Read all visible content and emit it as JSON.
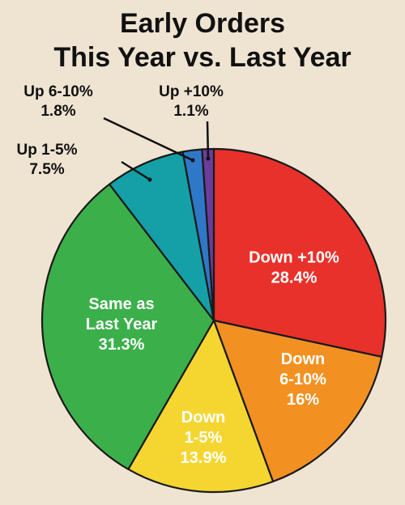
{
  "chart_data": {
    "type": "pie",
    "title_lines": [
      "Early Orders",
      "This Year vs. Last Year"
    ],
    "slices": [
      {
        "label_lines": [
          "Down +10%"
        ],
        "value": 28.4,
        "value_label": "28.4%",
        "color": "#e8312a",
        "label_placement": "inside"
      },
      {
        "label_lines": [
          "Down",
          "6-10%"
        ],
        "value": 16,
        "value_label": "16%",
        "color": "#f29122",
        "label_placement": "inside"
      },
      {
        "label_lines": [
          "Down",
          "1-5%"
        ],
        "value": 13.9,
        "value_label": "13.9%",
        "color": "#f5d631",
        "label_placement": "inside"
      },
      {
        "label_lines": [
          "Same as",
          "Last Year"
        ],
        "value": 31.3,
        "value_label": "31.3%",
        "color": "#3bb04a",
        "label_placement": "inside"
      },
      {
        "label_lines": [
          "Up 1-5%"
        ],
        "value": 7.5,
        "value_label": "7.5%",
        "color": "#14a0a6",
        "label_placement": "outside"
      },
      {
        "label_lines": [
          "Up 6-10%"
        ],
        "value": 1.8,
        "value_label": "1.8%",
        "color": "#2f78c8",
        "label_placement": "outside"
      },
      {
        "label_lines": [
          "Up +10%"
        ],
        "value": 1.1,
        "value_label": "1.1%",
        "color": "#6a3d9a",
        "label_placement": "outside"
      }
    ],
    "start": "12 o'clock",
    "direction": "clockwise",
    "legend": "none"
  }
}
